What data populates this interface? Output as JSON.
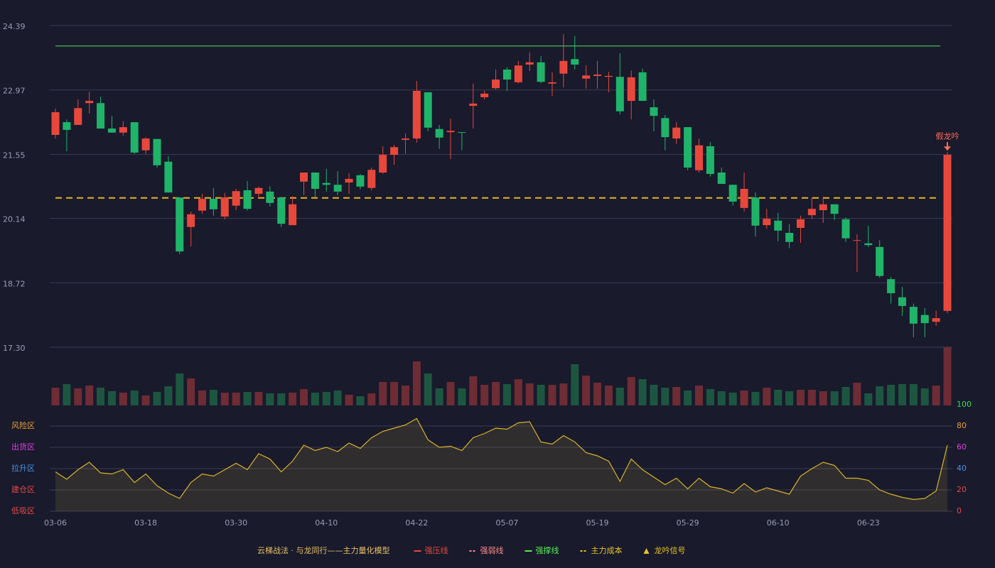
{
  "chart_data": {
    "type": "candlestick",
    "categories": [
      "03-06",
      null,
      null,
      null,
      null,
      null,
      null,
      null,
      "03-18",
      null,
      null,
      null,
      null,
      null,
      null,
      null,
      "03-30",
      null,
      null,
      null,
      null,
      null,
      null,
      null,
      "04-10",
      null,
      null,
      null,
      null,
      null,
      null,
      null,
      "04-22",
      null,
      null,
      null,
      null,
      null,
      null,
      null,
      "05-07",
      null,
      null,
      null,
      null,
      null,
      null,
      null,
      "05-19",
      null,
      null,
      null,
      null,
      null,
      null,
      null,
      "05-29",
      null,
      null,
      null,
      null,
      null,
      null,
      null,
      "06-10",
      null,
      null,
      null,
      null,
      null,
      null,
      null,
      "06-23",
      null,
      null,
      null,
      null,
      null,
      null,
      null
    ],
    "open": [
      21.98,
      22.26,
      22.2,
      22.68,
      22.68,
      22.12,
      22.03,
      22.26,
      21.64,
      21.89,
      21.39,
      20.6,
      19.95,
      20.31,
      20.57,
      20.18,
      20.42,
      20.76,
      20.68,
      20.73,
      20.6,
      19.99,
      20.95,
      21.15,
      20.92,
      20.88,
      20.93,
      21.09,
      20.81,
      21.15,
      21.54,
      21.87,
      21.9,
      22.92,
      22.11,
      22.04,
      22.04,
      22.62,
      22.81,
      23.01,
      23.42,
      23.14,
      23.53,
      23.58,
      23.11,
      23.33,
      23.65,
      23.22,
      23.28,
      23.26,
      23.26,
      22.73,
      23.36,
      22.59,
      22.35,
      21.9,
      22.15,
      21.2,
      21.73,
      21.15,
      20.88,
      20.37,
      20.6,
      19.99,
      20.09,
      19.82,
      19.93,
      20.21,
      20.32,
      20.45,
      20.12,
      19.65,
      19.59,
      19.51,
      18.8,
      18.4,
      18.19,
      18.01,
      17.86,
      18.1
    ],
    "high": [
      22.56,
      22.32,
      22.76,
      22.93,
      22.82,
      22.4,
      22.28,
      22.26,
      21.93,
      21.89,
      21.51,
      20.6,
      20.29,
      20.68,
      20.81,
      20.7,
      20.79,
      20.96,
      20.84,
      20.85,
      20.6,
      20.63,
      21.15,
      21.15,
      21.23,
      21.18,
      21.13,
      21.12,
      21.26,
      21.73,
      21.76,
      22.01,
      23.17,
      22.92,
      22.2,
      22.34,
      22.04,
      23.11,
      22.95,
      23.42,
      23.47,
      23.61,
      23.8,
      23.72,
      23.36,
      24.2,
      24.16,
      23.51,
      23.61,
      23.37,
      23.78,
      23.4,
      23.44,
      22.76,
      22.42,
      22.26,
      22.15,
      21.9,
      21.82,
      21.26,
      20.88,
      21.15,
      20.71,
      20.35,
      20.26,
      20.01,
      20.2,
      20.6,
      20.62,
      20.45,
      20.16,
      19.79,
      19.98,
      19.66,
      18.85,
      18.63,
      18.26,
      18.16,
      18.11,
      21.6
    ],
    "low": [
      21.9,
      21.62,
      22.2,
      22.45,
      22.12,
      22.03,
      21.96,
      21.56,
      21.56,
      21.26,
      20.71,
      19.35,
      19.52,
      20.24,
      20.2,
      20.12,
      20.32,
      20.31,
      20.57,
      20.4,
      19.95,
      19.99,
      20.65,
      20.6,
      20.73,
      20.65,
      20.68,
      20.78,
      20.76,
      21.12,
      21.32,
      21.56,
      21.81,
      22.06,
      21.67,
      21.45,
      21.64,
      22.12,
      22.76,
      22.98,
      22.95,
      23.11,
      23.39,
      23.12,
      22.84,
      23.03,
      23.42,
      23.0,
      23.0,
      22.92,
      22.43,
      22.32,
      22.73,
      22.06,
      21.64,
      21.78,
      21.2,
      21.15,
      21.06,
      20.9,
      20.42,
      20.29,
      19.74,
      19.91,
      19.63,
      19.48,
      19.6,
      20.13,
      20.04,
      20.1,
      19.62,
      18.96,
      19.51,
      18.83,
      18.26,
      17.99,
      17.52,
      17.52,
      17.77,
      18.05
    ],
    "close": [
      22.48,
      22.09,
      22.57,
      22.73,
      22.12,
      22.03,
      22.15,
      21.59,
      21.9,
      21.31,
      20.71,
      19.41,
      20.23,
      20.57,
      20.34,
      20.6,
      20.74,
      20.35,
      20.81,
      20.48,
      20.02,
      20.45,
      21.15,
      20.79,
      20.88,
      20.73,
      21.01,
      20.84,
      21.21,
      21.54,
      21.71,
      21.9,
      22.95,
      22.14,
      21.92,
      22.07,
      22.03,
      22.67,
      22.89,
      23.2,
      23.2,
      23.51,
      23.58,
      23.15,
      23.14,
      23.61,
      23.53,
      23.29,
      23.31,
      23.28,
      22.5,
      23.25,
      22.73,
      22.4,
      21.93,
      22.14,
      21.26,
      21.75,
      21.12,
      20.9,
      20.51,
      20.79,
      19.98,
      20.13,
      19.87,
      19.62,
      20.12,
      20.35,
      20.45,
      20.24,
      19.7,
      19.66,
      19.55,
      18.87,
      18.49,
      18.21,
      17.82,
      17.83,
      17.94,
      21.54
    ],
    "up_color": "#e8483c",
    "down_color": "#1fb46a",
    "ylim": [
      17.3,
      24.39
    ],
    "yticks": [
      24.39,
      22.97,
      21.55,
      20.14,
      18.72,
      {
        "value": 17.3,
        "label": "17.30"
      }
    ],
    "grid": true,
    "levels": [
      {
        "value": 23.94,
        "color": "#44bb55",
        "style": "solid"
      },
      {
        "value": 20.59,
        "color": "#e6b422",
        "style": "dashed"
      }
    ],
    "annotation": {
      "text": "假龙吟",
      "color": "#ff6b5b"
    },
    "volume": {
      "values": [
        25,
        30,
        24,
        28,
        25,
        20,
        18,
        21,
        14,
        19,
        27,
        45,
        38,
        21,
        22,
        18,
        18,
        19,
        19,
        17,
        17,
        18,
        23,
        18,
        19,
        21,
        15,
        13,
        17,
        33,
        33,
        28,
        62,
        45,
        24,
        33,
        24,
        41,
        29,
        33,
        30,
        37,
        31,
        29,
        29,
        31,
        58,
        42,
        32,
        28,
        25,
        40,
        37,
        29,
        25,
        26,
        21,
        28,
        23,
        20,
        18,
        21,
        19,
        25,
        22,
        20,
        22,
        22,
        20,
        20,
        26,
        32,
        17,
        27,
        29,
        30,
        30,
        24,
        28,
        82
      ],
      "ylim": [
        0,
        82
      ],
      "up_color": "#6e2c34",
      "down_color": "#1d5640"
    },
    "indicator": {
      "values": [
        37,
        30,
        39,
        46,
        36,
        35,
        39,
        27,
        35,
        24,
        17,
        12,
        27,
        35,
        33,
        39,
        45,
        39,
        54,
        49,
        37,
        47,
        62,
        57,
        60,
        56,
        64,
        59,
        69,
        75,
        78,
        81,
        87,
        67,
        60,
        61,
        57,
        69,
        73,
        78,
        77,
        83,
        84,
        65,
        63,
        71,
        65,
        55,
        52,
        47,
        28,
        49,
        39,
        32,
        25,
        31,
        21,
        31,
        23,
        21,
        17,
        26,
        18,
        22,
        19,
        16,
        33,
        40,
        46,
        43,
        31,
        31,
        29,
        20,
        16,
        13,
        11,
        12,
        19,
        62
      ],
      "color": "#d8b428",
      "ylim": [
        0,
        100
      ],
      "yticks": [
        0,
        20,
        40,
        60,
        80,
        100
      ],
      "ytick_colors": [
        "#e84848",
        "#e84848",
        "#4a90e2",
        "#e040e0",
        "#e8a030",
        "#33dd55"
      ],
      "zones": [
        {
          "label": "风险区",
          "value": 80,
          "color": "#e8a030"
        },
        {
          "label": "出货区",
          "value": 60,
          "color": "#e040e0"
        },
        {
          "label": "拉升区",
          "value": 40,
          "color": "#4a90e2"
        },
        {
          "label": "建仓区",
          "value": 20,
          "color": "#e84848"
        },
        {
          "label": "低吸区",
          "value": 0,
          "color": "#e84848"
        }
      ]
    },
    "legend": {
      "title": "云梯战法 · 与龙同行——主力量化模型",
      "title_color": "#e8c068",
      "items": [
        {
          "label": "强压线",
          "color": "#e8483c",
          "style": "solid"
        },
        {
          "label": "强弱线",
          "color": "#ff8a8a",
          "style": "dashed"
        },
        {
          "label": "强撑线",
          "color": "#55ee55",
          "style": "solid"
        },
        {
          "label": "主力成本",
          "color": "#e6c422",
          "style": "dashed"
        },
        {
          "label": "龙吟信号",
          "color": "#e6c422",
          "style": "triangle"
        }
      ]
    }
  }
}
